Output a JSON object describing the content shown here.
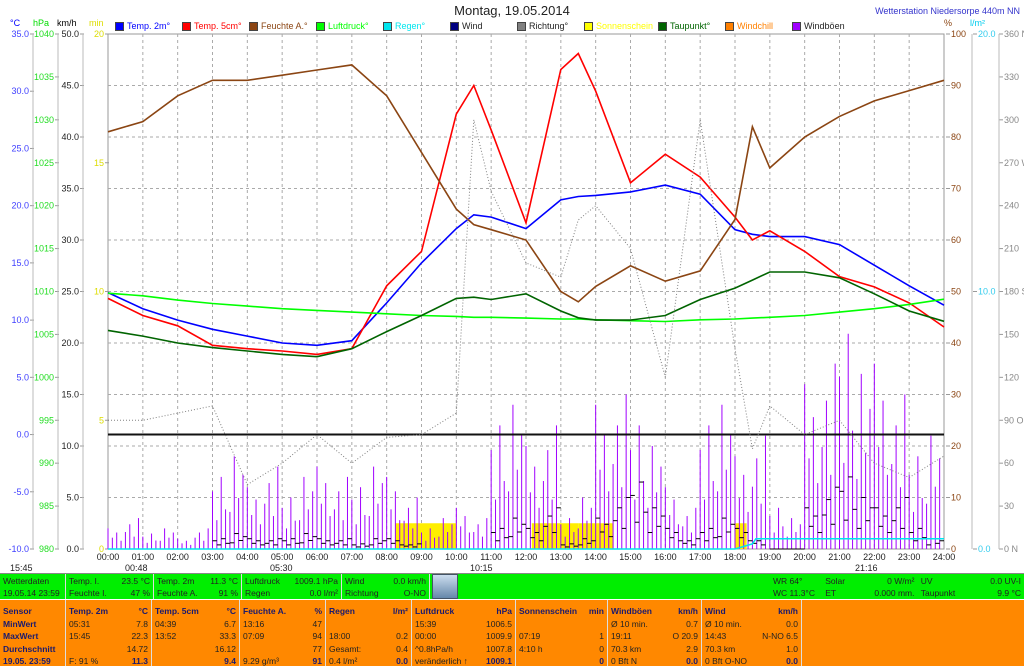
{
  "header": {
    "title": "Montag, 19.05.2014",
    "station": "Wetterstation Niedersorpe 440m NN"
  },
  "units": {
    "celsius": "°C",
    "hpa": "hPa",
    "kmh": "km/h",
    "min": "min",
    "percent": "%",
    "lm2": "l/m²"
  },
  "legend": [
    {
      "label": "Temp. 2m°",
      "color": "#0000ff"
    },
    {
      "label": "Temp. 5cm°",
      "color": "#ff0000"
    },
    {
      "label": "Feuchte A.°",
      "color": "#8b4513"
    },
    {
      "label": "Luftdruck°",
      "color": "#00ff00"
    },
    {
      "label": "Regen°",
      "color": "#00e5ee"
    },
    {
      "label": "Wind",
      "color": "#000080"
    },
    {
      "label": "Richtung°",
      "color": "#808080"
    },
    {
      "label": "Sonnenschein",
      "color": "#ffff00"
    },
    {
      "label": "Taupunkt°",
      "color": "#006400"
    },
    {
      "label": "Windchill",
      "color": "#ff8000"
    },
    {
      "label": "Windböen",
      "color": "#a000ff"
    }
  ],
  "chart_data": {
    "type": "line",
    "title": "Montag, 19.05.2014",
    "x_ticks": [
      "00:00",
      "01:00",
      "02:00",
      "03:00",
      "04:00",
      "05:00",
      "06:00",
      "07:00",
      "08:00",
      "09:00",
      "10:00",
      "11:00",
      "12:00",
      "13:00",
      "14:00",
      "15:00",
      "16:00",
      "17:00",
      "18:00",
      "19:00",
      "20:00",
      "21:00",
      "22:00",
      "23:00",
      "24:00"
    ],
    "axes": {
      "celsius": {
        "range": [
          -10,
          35
        ],
        "ticks": [
          "35.0",
          "30.0",
          "25.0",
          "20.0",
          "15.0",
          "10.0",
          "5.0",
          "0.0",
          "-5.0",
          "-10.0"
        ],
        "color": "#0000ff"
      },
      "hpa": {
        "range": [
          980,
          1040
        ],
        "ticks": [
          "1040",
          "1035",
          "1030",
          "1025",
          "1020",
          "1015",
          "1010",
          "1005",
          "1000",
          "995",
          "990",
          "985",
          "980"
        ],
        "color": "#00dd00"
      },
      "kmh": {
        "range": [
          0,
          50
        ],
        "ticks": [
          "50.0",
          "45.0",
          "40.0",
          "35.0",
          "30.0",
          "25.0",
          "20.0",
          "15.0",
          "10.0",
          "5.0",
          "0.0"
        ]
      },
      "min": {
        "range": [
          0,
          20
        ],
        "ticks": [
          "20",
          "15",
          "10",
          "5",
          "0"
        ],
        "color": "#dddd00"
      },
      "percent": {
        "range": [
          0,
          100
        ],
        "ticks": [
          "100",
          "90",
          "80",
          "70",
          "60",
          "50",
          "40",
          "30",
          "20",
          "10",
          "0"
        ],
        "color": "#8b4513"
      },
      "lm2": {
        "range": [
          0,
          20
        ],
        "ticks": [
          "20.0",
          "10.0",
          "0.0"
        ],
        "color": "#00ccee"
      },
      "direction": {
        "range": [
          0,
          360
        ],
        "ticks": [
          "360 N",
          "330",
          "300",
          "270 W",
          "240",
          "210",
          "180 S",
          "150",
          "120",
          "90 O",
          "60",
          "30",
          "0 N"
        ]
      }
    },
    "x_hours": [
      0,
      1,
      2,
      3,
      4,
      5,
      6,
      7,
      8,
      9,
      10,
      10.5,
      11,
      12,
      13,
      13.5,
      14,
      15,
      16,
      17,
      18,
      18.5,
      19,
      20,
      21,
      22,
      23,
      24
    ],
    "series": [
      {
        "name": "Temp. 2m°",
        "axis": "celsius",
        "color": "#0000ff",
        "values": [
          12.4,
          11.0,
          10.0,
          9.2,
          8.6,
          8.0,
          7.8,
          8.2,
          11.5,
          15.0,
          18.0,
          19.2,
          19.0,
          18.0,
          20.5,
          20.8,
          20.9,
          21.2,
          21.8,
          21.0,
          17.9,
          17.5,
          17.3,
          17.3,
          16.6,
          14.8,
          13.0,
          11.3
        ]
      },
      {
        "name": "Temp. 5cm°",
        "axis": "celsius",
        "color": "#ff0000",
        "values": [
          11.9,
          10.4,
          9.5,
          7.8,
          7.5,
          7.3,
          7.0,
          7.5,
          13.0,
          16.0,
          28.0,
          30.5,
          26.6,
          18.5,
          31.9,
          33.3,
          30.0,
          22.0,
          24.5,
          22.5,
          19.0,
          17.0,
          17.8,
          16.0,
          13.8,
          12.9,
          11.5,
          9.4
        ]
      },
      {
        "name": "Feuchte A.°",
        "axis": "percent",
        "color": "#8b4513",
        "values": [
          81,
          83,
          88,
          91,
          91,
          92,
          93,
          94,
          88,
          77,
          66,
          63,
          62,
          60,
          50,
          48,
          51,
          55,
          52,
          54,
          64,
          82,
          74,
          80,
          84,
          87,
          89,
          91
        ]
      },
      {
        "name": "Luftdruck°",
        "axis": "hpa",
        "color": "#00ff00",
        "values": [
          1009.8,
          1009.5,
          1009.0,
          1008.6,
          1008.3,
          1008.0,
          1007.8,
          1007.6,
          1007.4,
          1007.2,
          1007.1,
          1007.0,
          1007.0,
          1006.9,
          1006.8,
          1006.8,
          1006.7,
          1006.6,
          1006.5,
          1006.7,
          1006.8,
          1006.9,
          1007.0,
          1007.2,
          1007.6,
          1008.0,
          1008.5,
          1009.1
        ]
      },
      {
        "name": "Taupunkt°",
        "axis": "celsius",
        "color": "#006400",
        "values": [
          9.1,
          8.6,
          8.0,
          7.6,
          7.3,
          7.0,
          6.8,
          7.5,
          9.0,
          10.4,
          11.9,
          12.0,
          11.8,
          12.3,
          10.8,
          10.2,
          10.0,
          10.0,
          10.4,
          11.8,
          12.8,
          13.5,
          14.2,
          14.2,
          13.7,
          12.3,
          10.8,
          9.9
        ]
      },
      {
        "name": "Richtung°",
        "axis": "direction",
        "color": "#808080",
        "dashed": true,
        "values": [
          90,
          90,
          95,
          100,
          45,
          60,
          80,
          60,
          78,
          80,
          95,
          300,
          250,
          200,
          190,
          230,
          240,
          210,
          120,
          300,
          140,
          70,
          100,
          80,
          90,
          60,
          50,
          65
        ]
      }
    ],
    "bars_half_hourly": {
      "hours_start": 0,
      "Windböen": {
        "axis": "kmh",
        "color": "#a000ff",
        "values": [
          2,
          3,
          1.5,
          2,
          1,
          2,
          7,
          9,
          6,
          8,
          5,
          7,
          8,
          7,
          6,
          8,
          7,
          5,
          2,
          3,
          4,
          3,
          12,
          14,
          10,
          12,
          3,
          5,
          14,
          15,
          12,
          10,
          6,
          4,
          12,
          14,
          9,
          11,
          4,
          3,
          16,
          18,
          20.9,
          17,
          18,
          15,
          9,
          11
        ]
      },
      "Wind": {
        "axis": "kmh",
        "color": "#000000",
        "values": [
          0,
          0,
          0,
          0,
          0,
          0,
          1,
          1.5,
          1,
          1,
          1,
          1.5,
          1,
          1,
          0.5,
          1,
          1,
          0.5,
          0,
          0,
          0,
          0,
          2,
          3,
          2,
          4,
          0.5,
          1,
          3,
          5,
          6.5,
          4,
          2,
          1,
          2,
          3,
          2,
          1,
          0,
          0,
          4,
          6,
          7,
          5,
          4,
          5,
          2,
          1
        ]
      }
    },
    "sunshine_minutes_segments": [
      {
        "from": "08:15",
        "to": "09:00",
        "value": 1
      },
      {
        "from": "09:00",
        "to": "10:00",
        "value": 1
      },
      {
        "from": "12:10",
        "to": "13:30",
        "value": 1
      },
      {
        "from": "13:30",
        "to": "14:30",
        "value": 1
      },
      {
        "from": "18:00",
        "to": "18:20",
        "value": 1
      }
    ],
    "rain_cumulative": {
      "axis": "lm2",
      "x_hours": [
        0,
        18,
        18.5,
        18.6,
        24
      ],
      "values": [
        0,
        0,
        0.2,
        0.4,
        0.4
      ]
    },
    "reference_line_celsius": 0,
    "annotations": [
      "15:45",
      "00:48",
      "05:30",
      "10:15",
      "21:16"
    ],
    "grid": true
  },
  "green_panel": {
    "c1": [
      "Wetterdaten",
      "19.05.14 23:59"
    ],
    "c2": [
      [
        "Temp. I.",
        "23.5 °C"
      ],
      [
        "Feuchte I.",
        "47 %"
      ]
    ],
    "c3": [
      [
        "Temp. 2m",
        "11.3 °C"
      ],
      [
        "Feuchte A.",
        "91 %"
      ]
    ],
    "c4": [
      [
        "Luftdruck",
        "1009.1 hPa"
      ],
      [
        "Regen",
        "0.0 l/m²"
      ]
    ],
    "c5": [
      [
        "Wind",
        "0.0 km/h"
      ],
      [
        "Richtung",
        "O-NO"
      ]
    ],
    "c6": [
      [
        "WR 64°",
        "Solar",
        "0 W/m²",
        "UV",
        "0.0 UV-I"
      ],
      [
        "WC 11.3°C",
        "ET",
        "0.000 mm.",
        "Taupunkt",
        "9.9 °C"
      ]
    ]
  },
  "orange_panel": [
    {
      "rows": [
        [
          "Sensor",
          ""
        ],
        [
          "MinWert",
          ""
        ],
        [
          "MaxWert",
          ""
        ],
        [
          "Durchschnitt",
          ""
        ],
        [
          "19.05. 23:59",
          ""
        ]
      ]
    },
    {
      "rows": [
        [
          "Temp. 2m",
          "°C"
        ],
        [
          "05:31",
          "7.8"
        ],
        [
          "15:45",
          "22.3"
        ],
        [
          "",
          "14.72"
        ],
        [
          "F: 91 %",
          "11.3"
        ]
      ]
    },
    {
      "rows": [
        [
          "Temp. 5cm",
          "°C"
        ],
        [
          "04:39",
          "6.7"
        ],
        [
          "13:52",
          "33.3"
        ],
        [
          "",
          "16.12"
        ],
        [
          "",
          "9.4"
        ]
      ]
    },
    {
      "rows": [
        [
          "Feuchte A.",
          "%"
        ],
        [
          "13:16",
          "47"
        ],
        [
          "07:09",
          "94"
        ],
        [
          "",
          "77"
        ],
        [
          "9.29 g/m³",
          "91"
        ]
      ]
    },
    {
      "rows": [
        [
          "Regen",
          "l/m²"
        ],
        [
          "",
          ""
        ],
        [
          "18:00",
          "0.2"
        ],
        [
          "Gesamt:",
          "0.4"
        ],
        [
          "0.4 l/m²",
          "0.0"
        ]
      ]
    },
    {
      "rows": [
        [
          "Luftdruck",
          "hPa"
        ],
        [
          "15:39",
          "1006.5"
        ],
        [
          "00:00",
          "1009.9"
        ],
        [
          "^0.8hPa/h",
          "1007.8"
        ],
        [
          "veränderlich ↑",
          "1009.1"
        ]
      ]
    },
    {
      "rows": [
        [
          "Sonnenschein",
          "min"
        ],
        [
          "",
          ""
        ],
        [
          "07:19",
          "1"
        ],
        [
          "4:10 h",
          "0"
        ],
        [
          "",
          "0"
        ]
      ]
    },
    {
      "rows": [
        [
          "Windböen",
          "km/h"
        ],
        [
          "Ø 10 min.",
          "0.7"
        ],
        [
          "19:11",
          "O 20.9"
        ],
        [
          "70.3 km",
          "2.9"
        ],
        [
          "0 Bft N",
          "0.0"
        ]
      ]
    },
    {
      "rows": [
        [
          "Wind",
          "km/h"
        ],
        [
          "Ø 10 min.",
          "0.0"
        ],
        [
          "14:43",
          "N-NO 6.5"
        ],
        [
          "70.3 km",
          "1.0"
        ],
        [
          "0 Bft O-NO",
          "0.0"
        ]
      ]
    }
  ]
}
